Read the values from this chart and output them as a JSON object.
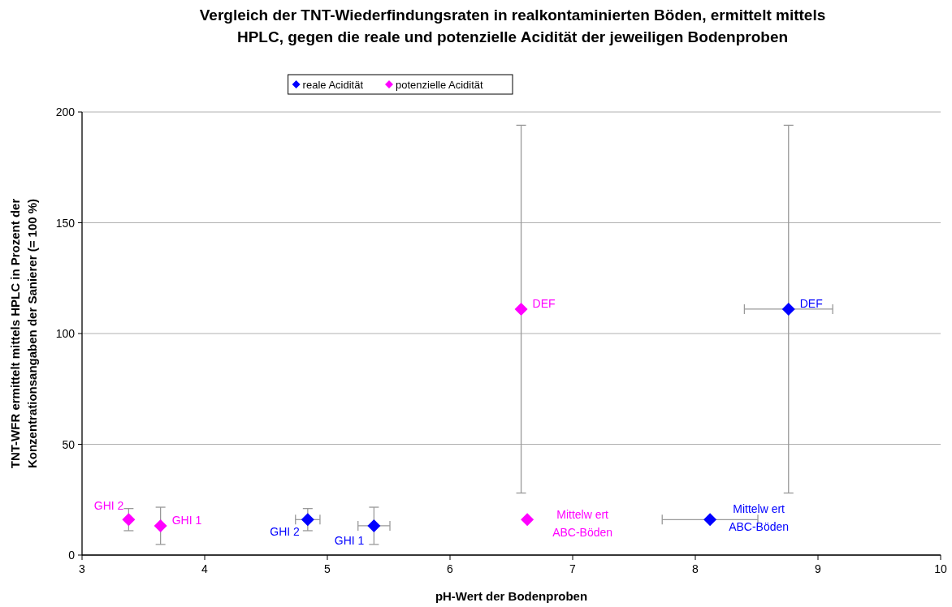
{
  "chart_data": {
    "type": "scatter",
    "title": "Vergleich der TNT-Wiederfindungsraten in realkontaminierten Böden, ermittelt mittels\nHPLC, gegen die reale und potenzielle Acidität der jeweiligen Bodenproben",
    "xlabel": "pH-Wert der Bodenproben",
    "ylabel": "TNT-WFR ermittelt mittels HPLC in Prozent der\nKonzentrationsangaben der Sanierer (= 100 %)",
    "xlim": [
      3,
      10
    ],
    "xticks": [
      3,
      4,
      5,
      6,
      7,
      8,
      9,
      10
    ],
    "ylim": [
      0,
      200
    ],
    "yticks": [
      0,
      50,
      100,
      150,
      200
    ],
    "grid": "y",
    "legend": "top",
    "marker": "diamond",
    "series": [
      {
        "name": "reale Acidität",
        "color": "#0000ff",
        "x": [
          4.84,
          5.38,
          8.12,
          8.76
        ],
        "values": [
          16,
          13.2,
          16,
          111
        ],
        "errors": [
          5,
          8.4,
          null,
          83
        ],
        "xerrors": [
          0.1,
          0.13,
          0.39,
          0.36
        ]
      },
      {
        "name": "potenzielle Acidität",
        "color": "#ff00ff",
        "x": [
          3.38,
          3.64,
          6.63,
          6.58
        ],
        "values": [
          16,
          13.2,
          16,
          111
        ],
        "errors": [
          5,
          8.4,
          null,
          83
        ],
        "xerrors": [
          null,
          null,
          null,
          null
        ]
      }
    ],
    "annotations": [
      {
        "text": "GHI 2",
        "x": 4.84,
        "y": 16
      },
      {
        "text": "GHI 1",
        "x": 5.38,
        "y": 13.2
      },
      {
        "text": "Mittelw ert\nABC-Böden",
        "x": 8.12,
        "y": 16
      },
      {
        "text": "DEF",
        "x": 8.76,
        "y": 111
      },
      {
        "text": "GHI 2",
        "x": 3.38,
        "y": 16
      },
      {
        "text": "GHI 1",
        "x": 3.64,
        "y": 13.2
      },
      {
        "text": "Mittelw ert\nABC-Böden",
        "x": 6.63,
        "y": 16
      },
      {
        "text": "DEF",
        "x": 6.58,
        "y": 111
      }
    ]
  }
}
